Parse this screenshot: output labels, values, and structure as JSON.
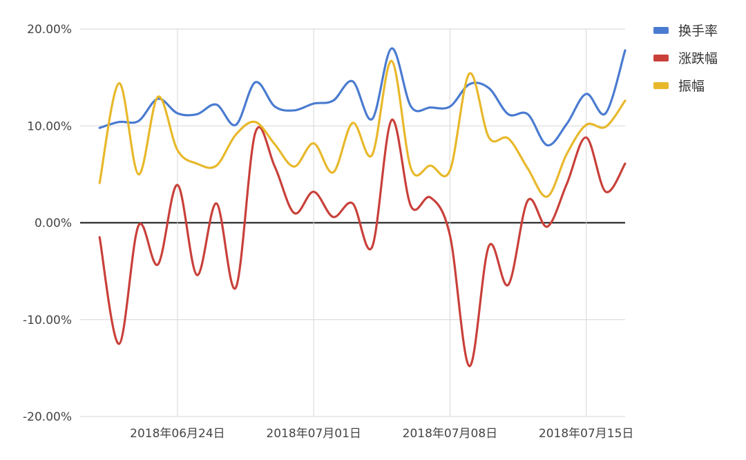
{
  "chart_data": {
    "type": "line",
    "x": [
      "2018-06-20",
      "2018-06-21",
      "2018-06-22",
      "2018-06-23",
      "2018-06-24",
      "2018-06-25",
      "2018-06-26",
      "2018-06-27",
      "2018-06-28",
      "2018-06-29",
      "2018-06-30",
      "2018-07-01",
      "2018-07-02",
      "2018-07-03",
      "2018-07-04",
      "2018-07-05",
      "2018-07-06",
      "2018-07-07",
      "2018-07-08",
      "2018-07-09",
      "2018-07-10",
      "2018-07-11",
      "2018-07-12",
      "2018-07-13",
      "2018-07-14",
      "2018-07-15",
      "2018-07-16",
      "2018-07-17"
    ],
    "x_ticks": [
      "2018-06-24",
      "2018-07-01",
      "2018-07-08",
      "2018-07-15"
    ],
    "x_tick_labels": [
      "2018年06月24日",
      "2018年07月01日",
      "2018年07月08日",
      "2018年07月15日"
    ],
    "xlim": [
      "2018-06-19",
      "2018-07-17"
    ],
    "y_ticks": [
      0.2,
      0.1,
      0,
      -0.1,
      -0.2
    ],
    "y_tick_labels": [
      "20.00%",
      "10.00%",
      "0.00%",
      "-10.00%",
      "-20.00%"
    ],
    "ylim": [
      -0.2,
      0.2
    ],
    "grid": true,
    "zero_line": true,
    "legend_position": "top-right",
    "series": [
      {
        "name": "换手率",
        "color": "#4a7bd0",
        "values": [
          0.098,
          0.104,
          0.105,
          0.128,
          0.113,
          0.112,
          0.122,
          0.101,
          0.145,
          0.12,
          0.116,
          0.123,
          0.126,
          0.146,
          0.107,
          0.18,
          0.12,
          0.119,
          0.12,
          0.143,
          0.139,
          0.112,
          0.112,
          0.08,
          0.102,
          0.133,
          0.113,
          0.178
        ]
      },
      {
        "name": "涨跌幅",
        "color": "#c9403a",
        "values": [
          -0.015,
          -0.125,
          -0.003,
          -0.043,
          0.039,
          -0.054,
          0.02,
          -0.067,
          0.093,
          0.058,
          0.01,
          0.032,
          0.006,
          0.02,
          -0.025,
          0.106,
          0.017,
          0.026,
          -0.013,
          -0.148,
          -0.024,
          -0.064,
          0.023,
          -0.004,
          0.04,
          0.088,
          0.032,
          0.061
        ]
      },
      {
        "name": "振幅",
        "color": "#e8b82a",
        "values": [
          0.041,
          0.144,
          0.05,
          0.13,
          0.075,
          0.061,
          0.059,
          0.091,
          0.104,
          0.081,
          0.058,
          0.082,
          0.052,
          0.103,
          0.07,
          0.167,
          0.056,
          0.059,
          0.054,
          0.154,
          0.088,
          0.087,
          0.056,
          0.027,
          0.071,
          0.101,
          0.099,
          0.126
        ]
      }
    ]
  }
}
